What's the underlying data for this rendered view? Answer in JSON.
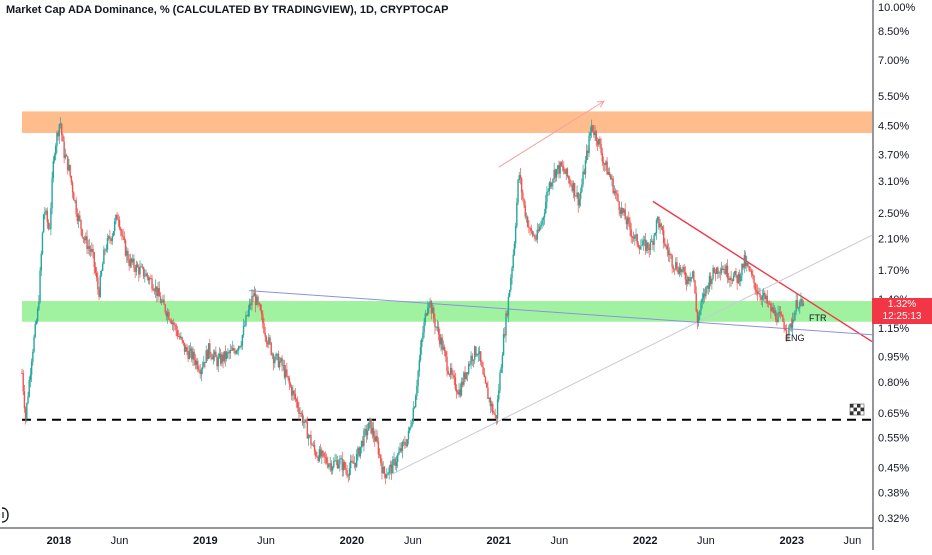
{
  "header": {
    "title": "Market Cap ADA Dominance, % (CALCULATED BY TRADINGVIEW), 1D, CRYPTOCAP"
  },
  "price_tag": {
    "value": "1.32%",
    "countdown": "12:25:13",
    "color": "#f23645"
  },
  "annotations": {
    "ftr": "FTR",
    "eng": "ENG"
  },
  "colors": {
    "supply_zone": "#ffb27a",
    "demand_zone": "#8ff08f",
    "up_candle": "#26a69a",
    "down_candle": "#ef5350",
    "trendline_down": "#f23645",
    "trendline_purple": "#8f8fe0",
    "trendline_gray": "#c9c9d6",
    "support_dashed": "#000000"
  },
  "icons": {
    "replay": "checkered-flag-icon",
    "sidebar": "drawing-tool-icon"
  },
  "chart_data": {
    "type": "candlestick",
    "title": "Market Cap ADA Dominance, % (CALCULATED BY TRADINGVIEW), 1D, CRYPTOCAP",
    "y_scale": "log",
    "ylim": [
      0.3,
      10.5
    ],
    "y_ticks": [
      "10.00%",
      "8.50%",
      "7.00%",
      "5.50%",
      "4.50%",
      "3.70%",
      "3.10%",
      "2.50%",
      "2.10%",
      "1.70%",
      "1.40%",
      "1.15%",
      "0.95%",
      "0.80%",
      "0.65%",
      "0.55%",
      "0.45%",
      "0.38%",
      "0.32%"
    ],
    "y_tick_values": [
      10.0,
      8.5,
      7.0,
      5.5,
      4.5,
      3.7,
      3.1,
      2.5,
      2.1,
      1.7,
      1.4,
      1.15,
      0.95,
      0.8,
      0.65,
      0.55,
      0.45,
      0.38,
      0.32
    ],
    "x_ticks": [
      "2018",
      "Jun",
      "2019",
      "Jun",
      "2020",
      "Jun",
      "2021",
      "Jun",
      "2022",
      "Jun",
      "2023",
      "Jun"
    ],
    "x_tick_dates": [
      "2018-01-01",
      "2018-06-01",
      "2019-01-01",
      "2019-06-01",
      "2020-01-01",
      "2020-06-01",
      "2021-01-01",
      "2021-06-01",
      "2022-01-01",
      "2022-06-01",
      "2023-01-01",
      "2023-06-01"
    ],
    "x_range": [
      "2017-10-01",
      "2023-07-20"
    ],
    "grid": false,
    "last_value": 1.32,
    "series": [
      {
        "values": [
          [
            "2017-10-01",
            0.85
          ],
          [
            "2017-10-10",
            0.63
          ],
          [
            "2017-10-25",
            0.95
          ],
          [
            "2017-11-10",
            1.3
          ],
          [
            "2017-11-25",
            2.6
          ],
          [
            "2017-12-08",
            2.2
          ],
          [
            "2017-12-20",
            3.8
          ],
          [
            "2018-01-04",
            4.7
          ],
          [
            "2018-01-12",
            3.8
          ],
          [
            "2018-01-25",
            3.4
          ],
          [
            "2018-02-15",
            2.5
          ],
          [
            "2018-03-05",
            2.1
          ],
          [
            "2018-03-25",
            1.9
          ],
          [
            "2018-04-10",
            1.45
          ],
          [
            "2018-04-25",
            1.95
          ],
          [
            "2018-05-15",
            2.2
          ],
          [
            "2018-05-28",
            2.5
          ],
          [
            "2018-06-10",
            2.05
          ],
          [
            "2018-06-25",
            1.8
          ],
          [
            "2018-07-15",
            1.72
          ],
          [
            "2018-08-05",
            1.65
          ],
          [
            "2018-08-25",
            1.55
          ],
          [
            "2018-09-15",
            1.35
          ],
          [
            "2018-10-05",
            1.25
          ],
          [
            "2018-10-25",
            1.1
          ],
          [
            "2018-11-10",
            1.0
          ],
          [
            "2018-11-30",
            0.95
          ],
          [
            "2018-12-20",
            0.88
          ],
          [
            "2019-01-10",
            1.0
          ],
          [
            "2019-01-30",
            0.92
          ],
          [
            "2019-02-20",
            0.95
          ],
          [
            "2019-03-10",
            0.98
          ],
          [
            "2019-03-30",
            1.05
          ],
          [
            "2019-04-15",
            1.25
          ],
          [
            "2019-05-01",
            1.45
          ],
          [
            "2019-05-15",
            1.3
          ],
          [
            "2019-06-01",
            1.1
          ],
          [
            "2019-06-20",
            0.95
          ],
          [
            "2019-07-10",
            0.9
          ],
          [
            "2019-07-30",
            0.78
          ],
          [
            "2019-08-20",
            0.68
          ],
          [
            "2019-09-10",
            0.58
          ],
          [
            "2019-09-30",
            0.5
          ],
          [
            "2019-10-20",
            0.48
          ],
          [
            "2019-11-10",
            0.46
          ],
          [
            "2019-11-30",
            0.47
          ],
          [
            "2019-12-20",
            0.44
          ],
          [
            "2020-01-10",
            0.47
          ],
          [
            "2020-01-30",
            0.55
          ],
          [
            "2020-02-15",
            0.6
          ],
          [
            "2020-03-05",
            0.52
          ],
          [
            "2020-03-20",
            0.43
          ],
          [
            "2020-04-10",
            0.45
          ],
          [
            "2020-04-30",
            0.5
          ],
          [
            "2020-05-20",
            0.55
          ],
          [
            "2020-06-05",
            0.7
          ],
          [
            "2020-06-25",
            1.1
          ],
          [
            "2020-07-10",
            1.42
          ],
          [
            "2020-07-25",
            1.2
          ],
          [
            "2020-08-10",
            1.05
          ],
          [
            "2020-08-25",
            0.9
          ],
          [
            "2020-09-10",
            0.8
          ],
          [
            "2020-09-25",
            0.75
          ],
          [
            "2020-10-10",
            0.85
          ],
          [
            "2020-10-25",
            0.95
          ],
          [
            "2020-11-10",
            1.0
          ],
          [
            "2020-11-25",
            0.8
          ],
          [
            "2020-12-10",
            0.7
          ],
          [
            "2020-12-25",
            0.62
          ],
          [
            "2021-01-10",
            1.0
          ],
          [
            "2021-01-25",
            1.4
          ],
          [
            "2021-02-08",
            2.0
          ],
          [
            "2021-02-20",
            3.3
          ],
          [
            "2021-03-05",
            2.6
          ],
          [
            "2021-03-20",
            2.2
          ],
          [
            "2021-04-05",
            2.1
          ],
          [
            "2021-04-20",
            2.4
          ],
          [
            "2021-05-05",
            3.0
          ],
          [
            "2021-05-20",
            3.3
          ],
          [
            "2021-06-05",
            3.4
          ],
          [
            "2021-06-20",
            3.2
          ],
          [
            "2021-07-05",
            3.0
          ],
          [
            "2021-07-20",
            2.7
          ],
          [
            "2021-08-05",
            3.5
          ],
          [
            "2021-08-20",
            4.5
          ],
          [
            "2021-09-05",
            4.1
          ],
          [
            "2021-09-20",
            3.5
          ],
          [
            "2021-10-05",
            3.2
          ],
          [
            "2021-10-20",
            2.8
          ],
          [
            "2021-11-05",
            2.5
          ],
          [
            "2021-11-20",
            2.3
          ],
          [
            "2021-12-05",
            2.1
          ],
          [
            "2021-12-25",
            2.0
          ],
          [
            "2022-01-15",
            2.0
          ],
          [
            "2022-02-01",
            2.4
          ],
          [
            "2022-02-20",
            2.0
          ],
          [
            "2022-03-10",
            1.8
          ],
          [
            "2022-03-30",
            1.7
          ],
          [
            "2022-04-15",
            1.6
          ],
          [
            "2022-04-30",
            1.7
          ],
          [
            "2022-05-10",
            1.2
          ],
          [
            "2022-05-25",
            1.4
          ],
          [
            "2022-06-10",
            1.6
          ],
          [
            "2022-06-25",
            1.7
          ],
          [
            "2022-07-10",
            1.75
          ],
          [
            "2022-07-30",
            1.65
          ],
          [
            "2022-08-20",
            1.6
          ],
          [
            "2022-09-05",
            1.8
          ],
          [
            "2022-09-20",
            1.65
          ],
          [
            "2022-10-05",
            1.5
          ],
          [
            "2022-10-25",
            1.4
          ],
          [
            "2022-11-10",
            1.3
          ],
          [
            "2022-11-25",
            1.25
          ],
          [
            "2022-12-10",
            1.2
          ],
          [
            "2022-12-25",
            1.12
          ],
          [
            "2023-01-05",
            1.25
          ],
          [
            "2023-01-15",
            1.38
          ],
          [
            "2023-01-30",
            1.32
          ]
        ]
      }
    ],
    "zones": [
      {
        "from": 4.28,
        "to": 4.95,
        "color": "#ffb27a"
      },
      {
        "from": 1.2,
        "to": 1.38,
        "color": "#8ff08f"
      }
    ],
    "lines": [
      {
        "style": "solid",
        "color": "#f23645",
        "from": [
          "2022-01-20",
          2.7
        ],
        "to": [
          "2023-07-20",
          1.05
        ]
      },
      {
        "style": "solid",
        "color": "#8f8fe0",
        "from": [
          "2019-04-20",
          1.48
        ],
        "to": [
          "2023-07-20",
          1.1
        ]
      },
      {
        "style": "solid",
        "color": "#c9c9d6",
        "from": [
          "2020-04-10",
          0.43
        ],
        "to": [
          "2023-07-20",
          2.15
        ]
      },
      {
        "style": "arrow",
        "color": "#f7a0a0",
        "from": [
          "2021-01-01",
          3.4
        ],
        "to": [
          "2021-09-20",
          5.3
        ]
      },
      {
        "style": "dashed",
        "color": "#000000",
        "from": [
          "2017-10-01",
          0.62
        ],
        "to": [
          "2023-07-20",
          0.62
        ]
      }
    ]
  }
}
